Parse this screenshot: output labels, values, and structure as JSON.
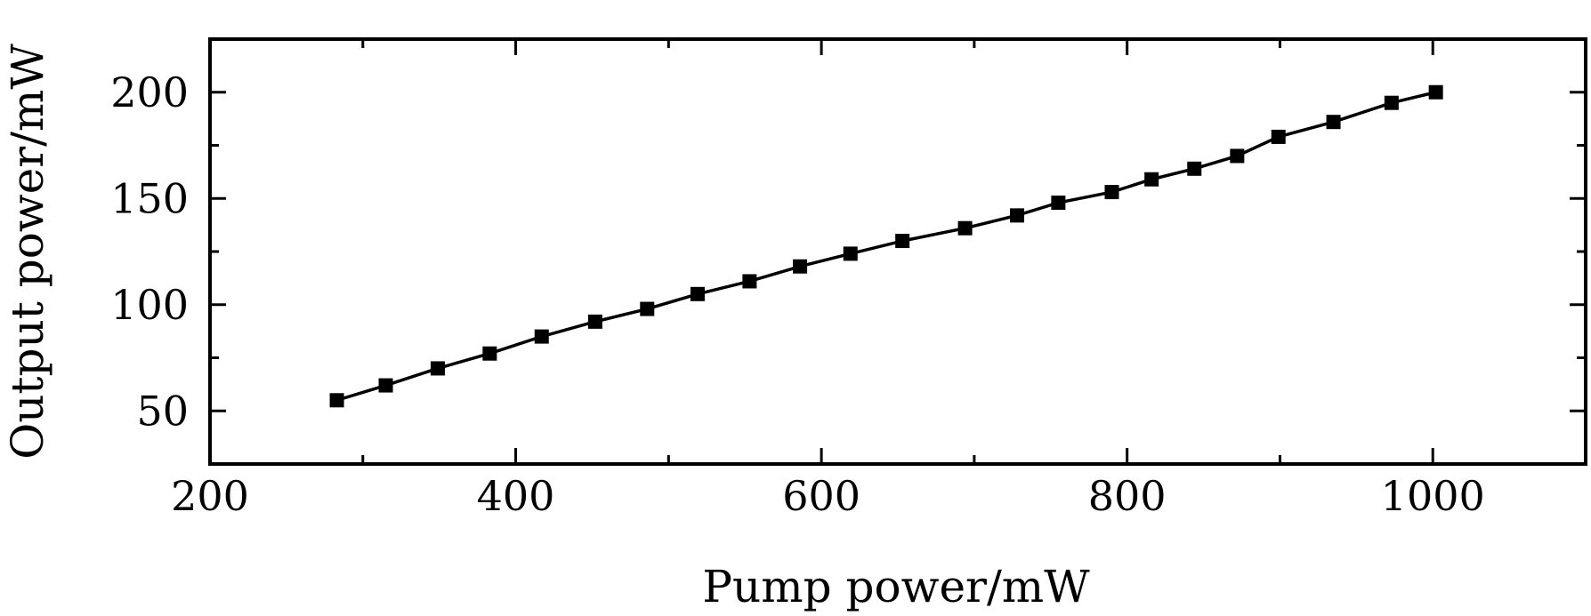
{
  "chart_data": {
    "type": "line",
    "title": "",
    "xlabel": "Pump power/mW",
    "ylabel": "Output power/mW",
    "xlim": [
      200,
      1100
    ],
    "ylim": [
      25,
      225
    ],
    "x_ticks": [
      200,
      400,
      600,
      800,
      1000
    ],
    "x_tick_labels": [
      "200",
      "400",
      "600",
      "800",
      "1000"
    ],
    "x_minor_ticks": [
      300,
      500,
      700,
      900,
      1100
    ],
    "y_ticks": [
      50,
      100,
      150,
      200
    ],
    "y_tick_labels": [
      "50",
      "100",
      "150",
      "200"
    ],
    "y_minor_ticks": [
      75,
      125,
      175
    ],
    "grid": false,
    "legend": "none",
    "series": [
      {
        "marker": "square",
        "color": "#000000",
        "x": [
          283,
          315,
          349,
          383,
          417,
          452,
          486,
          519,
          553,
          586,
          619,
          653,
          694,
          728,
          755,
          790,
          816,
          844,
          872,
          899,
          935,
          973,
          1002
        ],
        "y": [
          55,
          62,
          70,
          77,
          85,
          92,
          98,
          105,
          111,
          118,
          124,
          130,
          136,
          142,
          148,
          153,
          159,
          164,
          170,
          179,
          186,
          195,
          200
        ]
      }
    ]
  }
}
